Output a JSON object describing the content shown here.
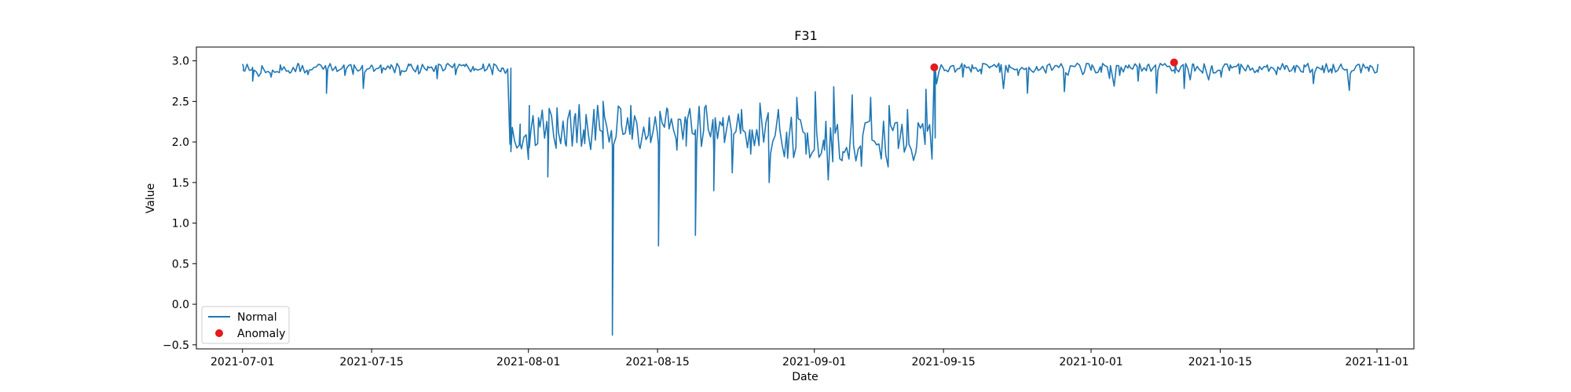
{
  "chart_data": {
    "type": "line",
    "title": "F31",
    "xlabel": "Date",
    "ylabel": "Value",
    "xlim": [
      "2021-06-26",
      "2021-11-05"
    ],
    "ylim": [
      -0.55,
      3.17
    ],
    "x_ticks": [
      "2021-07-01",
      "2021-07-15",
      "2021-08-01",
      "2021-08-15",
      "2021-09-01",
      "2021-09-15",
      "2021-10-01",
      "2021-10-15",
      "2021-11-01"
    ],
    "y_ticks": [
      -0.5,
      0.0,
      0.5,
      1.0,
      1.5,
      2.0,
      2.5,
      3.0
    ],
    "y_tick_labels": [
      "−0.5",
      "0.0",
      "0.5",
      "1.0",
      "1.5",
      "2.0",
      "2.5",
      "3.0"
    ],
    "grid": false,
    "legend": {
      "position": "lower left"
    },
    "series": [
      {
        "name": "Normal",
        "kind": "line",
        "color": "#1f77b4",
        "x_range": [
          "2021-07-01",
          "2021-11-01"
        ],
        "points": [
          [
            "2021-07-01",
            2.93
          ],
          [
            "2021-07-01",
            2.88
          ],
          [
            "2021-07-02",
            2.92
          ],
          [
            "2021-07-02",
            2.75
          ],
          [
            "2021-07-03",
            2.94
          ],
          [
            "2021-07-04",
            2.8
          ],
          [
            "2021-07-05",
            2.95
          ],
          [
            "2021-07-06",
            2.85
          ],
          [
            "2021-07-07",
            2.96
          ],
          [
            "2021-07-08",
            2.83
          ],
          [
            "2021-07-09",
            2.94
          ],
          [
            "2021-07-10",
            2.87
          ],
          [
            "2021-07-10",
            2.6
          ],
          [
            "2021-07-11",
            2.93
          ],
          [
            "2021-07-12",
            2.82
          ],
          [
            "2021-07-13",
            2.95
          ],
          [
            "2021-07-14",
            2.66
          ],
          [
            "2021-07-15",
            2.93
          ],
          [
            "2021-07-16",
            2.85
          ],
          [
            "2021-07-17",
            2.95
          ],
          [
            "2021-07-18",
            2.82
          ],
          [
            "2021-07-19",
            2.94
          ],
          [
            "2021-07-20",
            2.84
          ],
          [
            "2021-07-21",
            2.93
          ],
          [
            "2021-07-22",
            2.78
          ],
          [
            "2021-07-23",
            2.95
          ],
          [
            "2021-07-24",
            2.83
          ],
          [
            "2021-07-25",
            2.93
          ],
          [
            "2021-07-26",
            2.88
          ],
          [
            "2021-07-27",
            2.96
          ],
          [
            "2021-07-28",
            2.83
          ],
          [
            "2021-07-29",
            2.91
          ],
          [
            "2021-07-29",
            2.9
          ],
          [
            "2021-07-30",
            2.91
          ],
          [
            "2021-07-30",
            1.88
          ],
          [
            "2021-07-31",
            2.22
          ],
          [
            "2021-07-31",
            1.98
          ],
          [
            "2021-08-01",
            2.45
          ],
          [
            "2021-08-01",
            1.93
          ],
          [
            "2021-08-02",
            2.3
          ],
          [
            "2021-08-03",
            2.05
          ],
          [
            "2021-08-03",
            1.57
          ],
          [
            "2021-08-04",
            2.42
          ],
          [
            "2021-08-05",
            1.95
          ],
          [
            "2021-08-06",
            2.35
          ],
          [
            "2021-08-07",
            1.98
          ],
          [
            "2021-08-08",
            2.4
          ],
          [
            "2021-08-09",
            1.92
          ],
          [
            "2021-08-09",
            2.5
          ],
          [
            "2021-08-10",
            1.95
          ],
          [
            "2021-08-10",
            -0.38
          ],
          [
            "2021-08-11",
            2.2
          ],
          [
            "2021-08-12",
            2.45
          ],
          [
            "2021-08-13",
            1.92
          ],
          [
            "2021-08-14",
            2.3
          ],
          [
            "2021-08-15",
            1.96
          ],
          [
            "2021-08-15",
            0.72
          ],
          [
            "2021-08-16",
            2.4
          ],
          [
            "2021-08-17",
            1.9
          ],
          [
            "2021-08-18",
            2.25
          ],
          [
            "2021-08-18",
            1.95
          ],
          [
            "2021-08-19",
            2.15
          ],
          [
            "2021-08-19",
            0.85
          ],
          [
            "2021-08-20",
            2.42
          ],
          [
            "2021-08-21",
            1.88
          ],
          [
            "2021-08-21",
            1.4
          ],
          [
            "2021-08-22",
            2.3
          ],
          [
            "2021-08-23",
            1.62
          ],
          [
            "2021-08-24",
            2.4
          ],
          [
            "2021-08-25",
            1.85
          ],
          [
            "2021-08-26",
            2.48
          ],
          [
            "2021-08-27",
            1.5
          ],
          [
            "2021-08-28",
            2.4
          ],
          [
            "2021-08-29",
            1.8
          ],
          [
            "2021-08-30",
            2.55
          ],
          [
            "2021-08-31",
            1.85
          ],
          [
            "2021-09-01",
            2.62
          ],
          [
            "2021-09-02",
            1.9
          ],
          [
            "2021-09-03",
            2.68
          ],
          [
            "2021-09-04",
            1.88
          ],
          [
            "2021-09-05",
            2.58
          ],
          [
            "2021-09-06",
            1.7
          ],
          [
            "2021-09-07",
            2.55
          ],
          [
            "2021-09-08",
            1.9
          ],
          [
            "2021-09-09",
            2.45
          ],
          [
            "2021-09-10",
            1.92
          ],
          [
            "2021-09-11",
            2.4
          ],
          [
            "2021-09-12",
            1.96
          ],
          [
            "2021-09-13",
            2.65
          ],
          [
            "2021-09-14",
            2.05
          ],
          [
            "2021-09-14",
            2.92
          ],
          [
            "2021-09-15",
            2.88
          ],
          [
            "2021-09-16",
            2.94
          ],
          [
            "2021-09-17",
            2.8
          ],
          [
            "2021-09-18",
            2.95
          ],
          [
            "2021-09-19",
            2.84
          ],
          [
            "2021-09-20",
            2.93
          ],
          [
            "2021-09-21",
            2.86
          ],
          [
            "2021-09-22",
            2.95
          ],
          [
            "2021-09-23",
            2.82
          ],
          [
            "2021-09-24",
            2.6
          ],
          [
            "2021-09-25",
            2.93
          ],
          [
            "2021-09-26",
            2.85
          ],
          [
            "2021-09-27",
            2.94
          ],
          [
            "2021-09-28",
            2.62
          ],
          [
            "2021-09-29",
            2.93
          ],
          [
            "2021-09-30",
            2.83
          ],
          [
            "2021-10-01",
            2.95
          ],
          [
            "2021-10-02",
            2.86
          ],
          [
            "2021-10-03",
            2.94
          ],
          [
            "2021-10-04",
            2.82
          ],
          [
            "2021-10-05",
            2.95
          ],
          [
            "2021-10-06",
            2.75
          ],
          [
            "2021-10-07",
            2.94
          ],
          [
            "2021-10-08",
            2.6
          ],
          [
            "2021-10-09",
            2.95
          ],
          [
            "2021-10-10",
            2.85
          ],
          [
            "2021-10-10",
            2.97
          ],
          [
            "2021-10-11",
            2.66
          ],
          [
            "2021-10-12",
            2.96
          ],
          [
            "2021-10-13",
            2.85
          ],
          [
            "2021-10-14",
            2.94
          ],
          [
            "2021-10-15",
            2.8
          ],
          [
            "2021-10-16",
            2.95
          ],
          [
            "2021-10-17",
            2.84
          ],
          [
            "2021-10-18",
            2.93
          ],
          [
            "2021-10-19",
            2.86
          ],
          [
            "2021-10-20",
            2.95
          ],
          [
            "2021-10-21",
            2.83
          ],
          [
            "2021-10-22",
            2.94
          ],
          [
            "2021-10-23",
            2.86
          ],
          [
            "2021-10-24",
            2.95
          ],
          [
            "2021-10-25",
            2.72
          ],
          [
            "2021-10-26",
            2.94
          ],
          [
            "2021-10-27",
            2.85
          ],
          [
            "2021-10-28",
            2.96
          ],
          [
            "2021-10-29",
            2.84
          ],
          [
            "2021-10-30",
            2.95
          ],
          [
            "2021-10-31",
            2.87
          ],
          [
            "2021-11-01",
            2.96
          ]
        ]
      },
      {
        "name": "Anomaly",
        "kind": "scatter",
        "color": "#e41a1c",
        "points": [
          [
            "2021-09-14",
            2.92
          ],
          [
            "2021-10-10",
            2.98
          ]
        ]
      }
    ]
  }
}
